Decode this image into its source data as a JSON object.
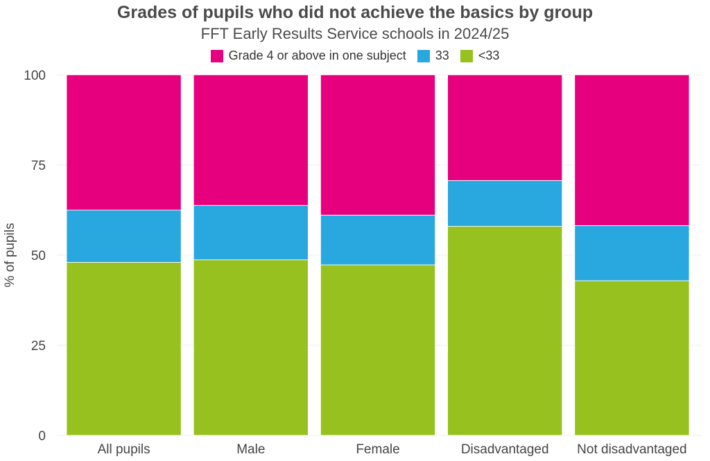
{
  "chart_data": {
    "type": "bar",
    "stacked": true,
    "title": "Grades of pupils who did not achieve the basics by group",
    "subtitle": "FFT Early Results Service schools in 2024/25",
    "xlabel": "",
    "ylabel": "% of pupils",
    "ylim": [
      0,
      100
    ],
    "yticks": [
      0,
      25,
      50,
      75,
      100
    ],
    "grid": true,
    "legend_position": "top-center",
    "categories": [
      "All pupils",
      "Male",
      "Female",
      "Disadvantaged",
      "Not disadvantaged"
    ],
    "series": [
      {
        "name": "<33",
        "color": "#97c11f",
        "values": [
          48,
          48.7,
          47.3,
          58,
          42.9
        ]
      },
      {
        "name": "33",
        "color": "#29a8e0",
        "values": [
          14.5,
          15.1,
          13.8,
          12.7,
          15.3
        ]
      },
      {
        "name": "Grade 4 or above in one subject",
        "color": "#e6007e",
        "values": [
          37.5,
          36.2,
          38.9,
          29.3,
          41.8
        ]
      }
    ],
    "legend_order": [
      "Grade 4 or above in one subject",
      "33",
      "<33"
    ]
  }
}
